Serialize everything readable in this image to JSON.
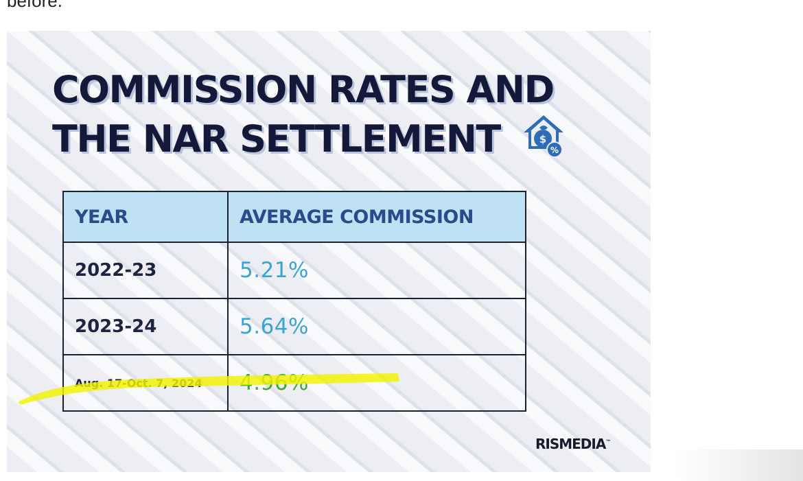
{
  "cut_text": "before.",
  "card": {
    "title_line1": "COMMISSION RATES AND",
    "title_line2": "THE NAR SETTLEMENT",
    "icon": "house-money-percent-icon",
    "brand": "RISMEDIA",
    "brand_mark": "™"
  },
  "table": {
    "headers": [
      "YEAR",
      "AVERAGE COMMISSION"
    ],
    "rows": [
      {
        "year": "2022-23",
        "rate": "5.21%",
        "color": "#3aa3d8"
      },
      {
        "year": "2023-24",
        "rate": "5.64%",
        "color": "#3aa3d8"
      },
      {
        "year": "Aug. 17-Oct. 7, 2024",
        "rate": "4.96%",
        "color": "#3ea936",
        "highlighted": true
      }
    ]
  },
  "colors": {
    "title": "#14193a",
    "header_bg": "#bfe1f4",
    "header_text": "#2a4a8c",
    "highlight": "#f2f200"
  }
}
